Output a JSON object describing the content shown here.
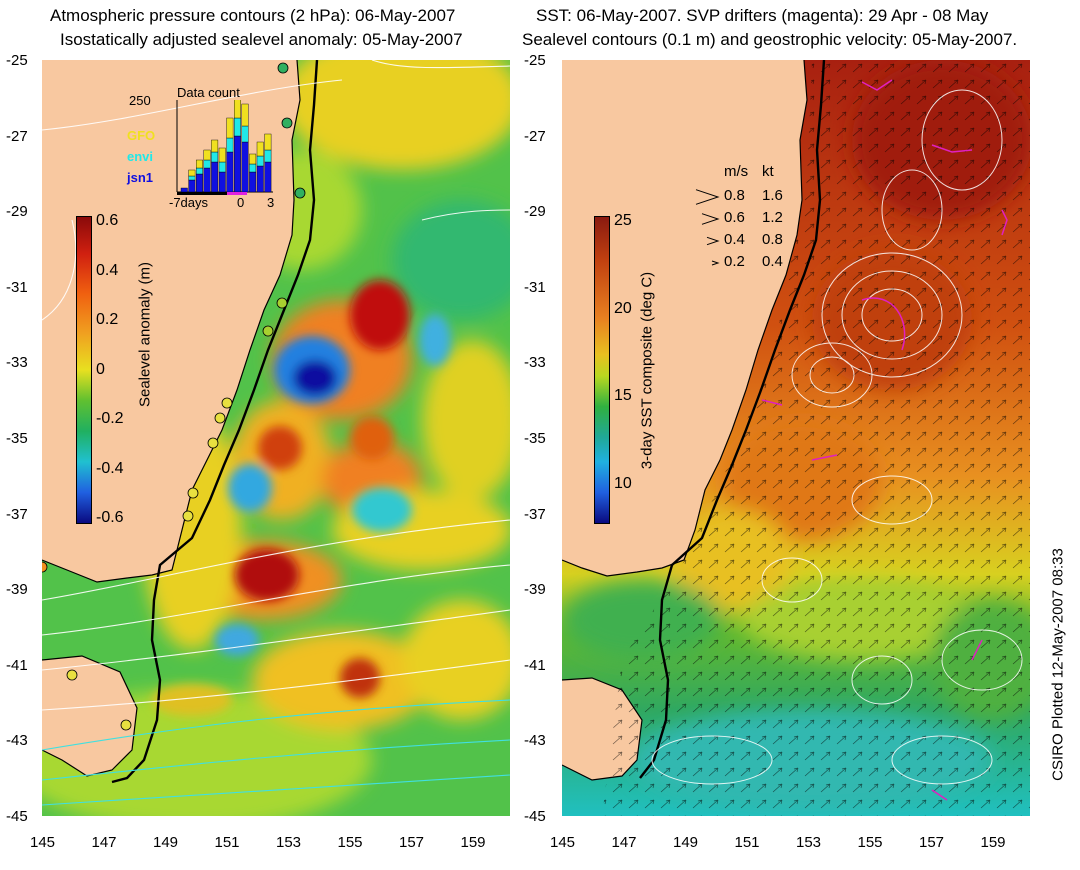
{
  "left": {
    "title_line1": "Atmospheric pressure contours (2 hPa): 06-May-2007",
    "title_line2": "Isostatically adjusted sealevel anomaly: 05-May-2007",
    "colorbar_label": "Sealevel anomaly (m)",
    "colorbar_ticks": [
      "0.6",
      "0.4",
      "0.2",
      "0",
      "-0.2",
      "-0.4",
      "-0.6"
    ],
    "inset": {
      "title": "Data count",
      "ymax": "250",
      "satellites": [
        {
          "name": "GFO",
          "color": "#f0e020"
        },
        {
          "name": "envi",
          "color": "#20e8e8"
        },
        {
          "name": "jsn1",
          "color": "#1010e0"
        }
      ],
      "x_labels": [
        "-7days",
        "0",
        "3"
      ]
    }
  },
  "right": {
    "title_line1": "SST: 06-May-2007. SVP drifters (magenta): 29 Apr - 08 May",
    "title_line2": "Sealevel contours (0.1 m) and geostrophic velocity: 05-May-2007.",
    "colorbar_label": "3-day SST composite (deg C)",
    "colorbar_ticks": [
      "25",
      "20",
      "15",
      "10"
    ],
    "speed_legend": {
      "header_ms": "m/s",
      "header_kt": "kt",
      "rows": [
        {
          "ms": "0.8",
          "kt": "1.6"
        },
        {
          "ms": "0.6",
          "kt": "1.2"
        },
        {
          "ms": "0.4",
          "kt": "0.8"
        },
        {
          "ms": "0.2",
          "kt": "0.4"
        }
      ]
    }
  },
  "lat_ticks": [
    "-25",
    "-27",
    "-29",
    "-31",
    "-33",
    "-35",
    "-37",
    "-39",
    "-41",
    "-43",
    "-45"
  ],
  "lon_ticks": [
    "145",
    "147",
    "149",
    "151",
    "153",
    "155",
    "157",
    "159"
  ],
  "credit": "CSIRO Plotted 12-May-2007 08:33",
  "colors": {
    "land": "#f8c8a0",
    "coast": "#000000",
    "sla_high": "#c01010",
    "sla_low": "#1010a0",
    "sst_warm": "#b02010",
    "sst_cool": "#10c0c0"
  }
}
